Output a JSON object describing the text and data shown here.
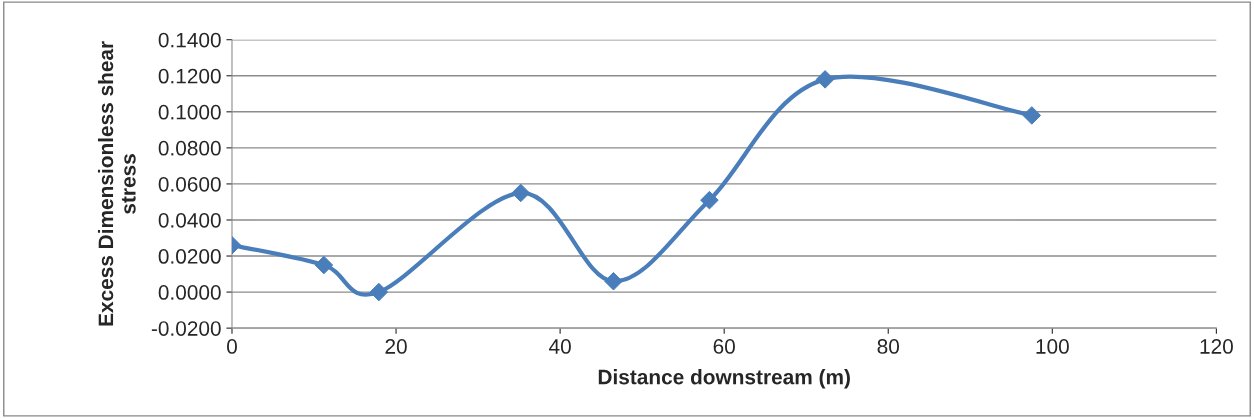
{
  "chart_data": {
    "type": "line",
    "xlabel": "Distance downstream (m)",
    "ylabel": "Excess Dimensionless shear\nstress",
    "x": [
      0,
      11.2,
      17.9,
      35.2,
      46.5,
      58.2,
      72.3,
      97.5
    ],
    "series": [
      {
        "color": "#4a7ebb",
        "values": [
          0.026,
          0.015,
          0.0,
          0.055,
          0.006,
          0.051,
          0.118,
          0.098
        ]
      }
    ],
    "xlim": [
      0,
      120
    ],
    "xticks": [
      0,
      20,
      40,
      60,
      80,
      100,
      120
    ],
    "ylim": [
      -0.02,
      0.14
    ],
    "yticks": [
      {
        "value": -0.02,
        "label": "-0.0200"
      },
      {
        "value": 0,
        "label": "0.0000"
      },
      {
        "value": 0.02,
        "label": "0.0200"
      },
      {
        "value": 0.04,
        "label": "0.0400"
      },
      {
        "value": 0.06,
        "label": "0.0600"
      },
      {
        "value": 0.08,
        "label": "0.0800"
      },
      {
        "value": 0.1,
        "label": "0.1000"
      },
      {
        "value": 0.12,
        "label": "0.1200"
      },
      {
        "value": 0.14,
        "label": "0.1400"
      }
    ],
    "grid": "y",
    "marker": "diamond",
    "line_style": "solid",
    "legend": false
  }
}
